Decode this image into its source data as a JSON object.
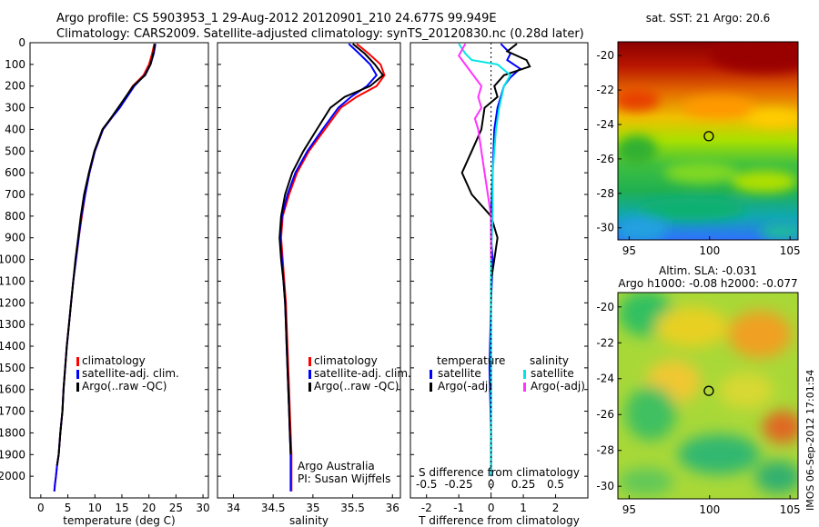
{
  "header": {
    "line1": "Argo profile: CS 5903953_1 29-Aug-2012 20120901_210 24.677S 99.949E",
    "line2": "Climatology: CARS2009. Satellite-adjusted climatology: synTS_20120830.nc (0.28d later)"
  },
  "stamp": "IMOS 06-Sep-2012 17:01:54",
  "colors": {
    "climatology": "#ff0000",
    "satellite": "#0000ff",
    "argo": "#000000",
    "sal_sat": "#00e5e5",
    "sal_argo": "#ff33ff"
  },
  "chart_data": [
    {
      "type": "line",
      "xlabel": "temperature (deg C)",
      "ylabel": "",
      "xlim": [
        -2,
        31
      ],
      "ylim": [
        2100,
        0
      ],
      "xticks": [
        0,
        5,
        10,
        15,
        20,
        25,
        30
      ],
      "yticks": [
        0,
        100,
        200,
        300,
        400,
        500,
        600,
        700,
        800,
        900,
        1000,
        1100,
        1200,
        1300,
        1400,
        1500,
        1600,
        1700,
        1800,
        1900,
        2000
      ],
      "legend": [
        "climatology",
        "satellite-adj. clim.",
        "Argo(..raw -QC)"
      ],
      "series": [
        {
          "name": "climatology",
          "color": "#ff0000",
          "x": [
            21.0,
            20.6,
            20.0,
            19.0,
            17.0,
            14.5,
            13.0,
            11.5,
            10.0,
            9.0,
            8.2,
            7.6,
            7.0,
            6.5,
            6.0,
            5.6,
            5.2,
            4.8,
            4.5,
            4.2,
            4.0,
            3.6,
            3.3,
            3.0,
            2.8,
            2.6,
            2.5
          ],
          "y": [
            5,
            50,
            100,
            150,
            200,
            300,
            350,
            400,
            500,
            600,
            700,
            800,
            900,
            1000,
            1100,
            1200,
            1300,
            1400,
            1500,
            1600,
            1700,
            1800,
            1900,
            1950,
            2000,
            2040,
            2070
          ]
        },
        {
          "name": "satellite-adj. clim.",
          "color": "#0000ff",
          "x": [
            21.2,
            20.9,
            20.3,
            19.2,
            17.3,
            14.6,
            13.0,
            11.5,
            10.0,
            9.0,
            8.2,
            7.5,
            7.0,
            6.5,
            6.0,
            5.6,
            5.2,
            4.8,
            4.5,
            4.2,
            4.0,
            3.6,
            3.3,
            3.0,
            2.8,
            2.6,
            2.5
          ],
          "y": [
            5,
            50,
            100,
            150,
            200,
            300,
            350,
            400,
            500,
            600,
            700,
            800,
            900,
            1000,
            1100,
            1200,
            1300,
            1400,
            1500,
            1600,
            1700,
            1800,
            1900,
            1950,
            2000,
            2040,
            2070
          ]
        },
        {
          "name": "Argo(..raw -QC)",
          "color": "#000000",
          "x": [
            21.1,
            20.8,
            20.3,
            19.3,
            17.1,
            14.3,
            12.9,
            11.4,
            9.9,
            8.9,
            8.0,
            7.4,
            6.9,
            6.4,
            6.0,
            5.6,
            5.2,
            4.8,
            4.5,
            4.2,
            4.0,
            3.6,
            3.3,
            3.0
          ],
          "y": [
            5,
            50,
            100,
            150,
            200,
            300,
            350,
            400,
            500,
            600,
            700,
            800,
            900,
            1000,
            1100,
            1200,
            1300,
            1400,
            1500,
            1600,
            1700,
            1800,
            1900,
            1950
          ]
        }
      ]
    },
    {
      "type": "line",
      "xlabel": "salinity",
      "ylabel": "",
      "xlim": [
        33.8,
        36.1
      ],
      "ylim": [
        2100,
        0
      ],
      "xticks": [
        34,
        34.5,
        35,
        35.5,
        36
      ],
      "legend": [
        "climatology",
        "satellite-adj. clim.",
        "Argo(..raw -QC)"
      ],
      "annotations": [
        "Argo Australia",
        "PI: Susan Wijffels"
      ],
      "series": [
        {
          "name": "climatology",
          "color": "#ff0000",
          "x": [
            35.55,
            35.7,
            35.85,
            35.9,
            35.8,
            35.55,
            35.35,
            35.15,
            34.95,
            34.8,
            34.7,
            34.62,
            34.6,
            34.62,
            34.64,
            34.66,
            34.67,
            34.68,
            34.69,
            34.7,
            34.71,
            34.72,
            34.73,
            34.73
          ],
          "y": [
            5,
            50,
            100,
            150,
            200,
            250,
            300,
            400,
            500,
            600,
            700,
            800,
            900,
            1000,
            1100,
            1200,
            1300,
            1400,
            1500,
            1600,
            1700,
            1800,
            1900,
            2070
          ]
        },
        {
          "name": "satellite-adj. clim.",
          "color": "#0000ff",
          "x": [
            35.45,
            35.58,
            35.72,
            35.8,
            35.68,
            35.48,
            35.32,
            35.12,
            34.93,
            34.78,
            34.68,
            34.61,
            34.59,
            34.61,
            34.63,
            34.65,
            34.66,
            34.67,
            34.68,
            34.69,
            34.7,
            34.71,
            34.72,
            34.72
          ],
          "y": [
            5,
            50,
            100,
            150,
            200,
            250,
            300,
            400,
            500,
            600,
            700,
            800,
            900,
            1000,
            1100,
            1200,
            1300,
            1400,
            1500,
            1600,
            1700,
            1800,
            1900,
            2070
          ]
        },
        {
          "name": "Argo(..raw -QC)",
          "color": "#000000",
          "x": [
            35.5,
            35.65,
            35.78,
            35.88,
            35.72,
            35.4,
            35.22,
            35.05,
            34.88,
            34.74,
            34.65,
            34.6,
            34.58,
            34.6,
            34.63,
            34.65,
            34.66,
            34.67,
            34.68,
            34.69,
            34.7,
            34.71,
            34.72
          ],
          "y": [
            5,
            50,
            100,
            150,
            200,
            250,
            300,
            400,
            500,
            600,
            700,
            800,
            900,
            1000,
            1100,
            1200,
            1300,
            1400,
            1500,
            1600,
            1700,
            1800,
            1900
          ]
        }
      ]
    },
    {
      "type": "line",
      "xlabel": "T difference from climatology",
      "top_xlabel": "S difference from climatology",
      "ylabel": "",
      "xlim": [
        -2.5,
        3
      ],
      "ylim": [
        2100,
        0
      ],
      "xticks": [
        -2,
        -1,
        0,
        1,
        2
      ],
      "top_xticks": [
        "-0.5",
        "-0.25",
        "0",
        "0.25",
        "0.5"
      ],
      "legend_temperature": [
        "temperature",
        "satellite",
        "Argo(-adj)"
      ],
      "legend_salinity": [
        "salinity",
        "satellite",
        "Argo(-adj)"
      ],
      "series": [
        {
          "name": "temperature satellite",
          "color": "#0000ff",
          "x": [
            0.3,
            0.6,
            0.5,
            0.9,
            0.6,
            0.4,
            0.3,
            0.2,
            0.1,
            0.05,
            0,
            0,
            0.05,
            0,
            -0.05,
            0,
            0
          ],
          "y": [
            5,
            50,
            80,
            120,
            160,
            200,
            250,
            300,
            400,
            600,
            800,
            900,
            1000,
            1200,
            1500,
            1800,
            2000
          ]
        },
        {
          "name": "temperature Argo(-adj)",
          "color": "#000000",
          "x": [
            0.8,
            0.5,
            1.1,
            1.2,
            0.4,
            0.1,
            0.2,
            -0.2,
            -0.3,
            -0.6,
            -0.9,
            -0.6,
            0,
            0.2,
            0.1,
            0,
            0,
            0,
            0
          ],
          "y": [
            5,
            40,
            80,
            110,
            150,
            200,
            250,
            300,
            400,
            500,
            600,
            700,
            800,
            900,
            1000,
            1100,
            1400,
            1700,
            1950
          ]
        },
        {
          "name": "salinity satellite",
          "color": "#00e5e5",
          "x": [
            -1.0,
            -0.8,
            -0.6,
            0.2,
            0.6,
            0.4,
            0.25,
            0.15,
            0.1,
            0.05,
            0.05,
            0,
            0,
            0,
            0
          ],
          "y": [
            5,
            50,
            80,
            100,
            150,
            200,
            300,
            400,
            500,
            600,
            800,
            1000,
            1400,
            1800,
            2000
          ]
        },
        {
          "name": "salinity Argo(-adj)",
          "color": "#ff33ff",
          "x": [
            -0.8,
            -1.0,
            -0.7,
            -0.3,
            -0.4,
            -0.3,
            -0.5,
            -0.4,
            -0.3,
            -0.2,
            -0.1,
            0,
            0,
            0
          ],
          "y": [
            5,
            60,
            120,
            200,
            250,
            300,
            350,
            400,
            500,
            600,
            700,
            800,
            900,
            1000
          ]
        }
      ]
    },
    {
      "type": "heatmap",
      "title": "sat. SST: 21  Argo: 20.6",
      "xticks": [
        95,
        100,
        105
      ],
      "yticks": [
        -20,
        -22,
        -24,
        -26,
        -28,
        -30
      ],
      "xlim": [
        94.3,
        105.5
      ],
      "ylim": [
        -30.7,
        -19.2
      ],
      "marker": {
        "x": 99.95,
        "y": -24.68
      }
    },
    {
      "type": "heatmap",
      "title": "Altim. SLA: -0.031",
      "subtitle": "Argo h1000: -0.08  h2000: -0.077",
      "xticks": [
        95,
        100,
        105
      ],
      "yticks": [
        -20,
        -22,
        -24,
        -26,
        -28,
        -30
      ],
      "xlim": [
        94.3,
        105.5
      ],
      "ylim": [
        -30.7,
        -19.2
      ],
      "marker": {
        "x": 99.95,
        "y": -24.68
      }
    }
  ]
}
